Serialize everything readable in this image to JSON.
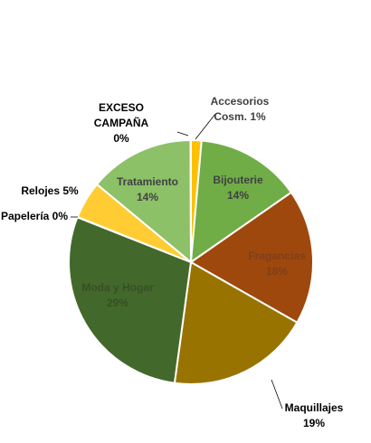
{
  "chart_data": {
    "type": "pie",
    "title": "",
    "start_angle_deg": 0,
    "direction": "clockwise",
    "legend": "none",
    "slices": [
      {
        "label": "Accesorios Cosm.",
        "label_lines": [
          "Accesorios",
          "Cosm. 1%"
        ],
        "value": 1.4,
        "color": "#FFC000"
      },
      {
        "label": "Bijouterie",
        "label_lines": [
          "Bijouterie",
          "14%"
        ],
        "value": 14,
        "color": "#70AD47"
      },
      {
        "label": "Fragancias",
        "label_lines": [
          "Fragancias",
          "18%"
        ],
        "value": 18,
        "color": "#9E480E"
      },
      {
        "label": "Maquillajes",
        "label_lines": [
          "Maquillajes",
          "19%"
        ],
        "value": 19,
        "color": "#997300"
      },
      {
        "label": "Moda y Hogar",
        "label_lines": [
          "Moda y Hogar",
          "29%"
        ],
        "value": 29,
        "color": "#43682B"
      },
      {
        "label": "Papelería",
        "label_lines": [
          "Papelería 0%"
        ],
        "value": 0.05,
        "color": "#FFC000"
      },
      {
        "label": "Relojes",
        "label_lines": [
          "Relojes 5%"
        ],
        "value": 5,
        "color": "#FFCD33"
      },
      {
        "label": "Tratamiento",
        "label_lines": [
          "Tratamiento",
          "14%"
        ],
        "value": 14,
        "color": "#8CC168"
      },
      {
        "label": "EXCESO CAMPAÑA",
        "label_lines": [
          "EXCESO",
          "CAMPAÑA",
          "0%"
        ],
        "value": 0.05,
        "color": "#C9E0B6"
      }
    ]
  }
}
